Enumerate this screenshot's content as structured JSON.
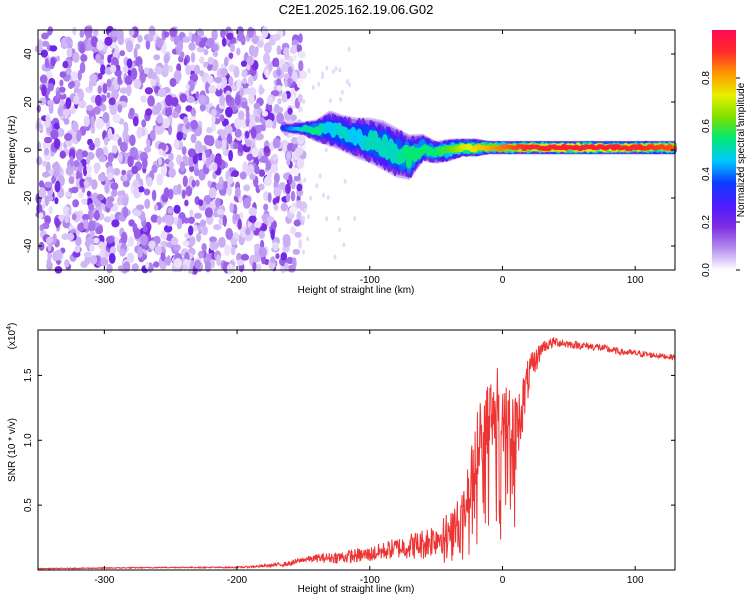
{
  "title": "C2E1.2025.162.19.06.G02",
  "chart_data": [
    {
      "type": "heatmap",
      "xlabel": "Height of straight line (km)",
      "ylabel": "Frequency (Hz)",
      "xlim": [
        -350,
        130
      ],
      "ylim": [
        -50,
        50
      ],
      "x_ticks": [
        -300,
        -200,
        -100,
        0,
        100
      ],
      "y_ticks": [
        -40,
        -20,
        0,
        20,
        40
      ],
      "colorbar": {
        "label": "Normalized spectral amplitude",
        "range": [
          0,
          1
        ],
        "ticks": [
          "0.0",
          "0.2",
          "0.4",
          "0.6",
          "0.8"
        ],
        "colormap": [
          "#ffffff",
          "#b48cf0",
          "#7d2be0",
          "#4b1cff",
          "#0a3cff",
          "#00c8ff",
          "#00e878",
          "#7be000",
          "#e8f000",
          "#ff9a00",
          "#ff2a2a",
          "#ff0a55"
        ]
      },
      "noise_region": {
        "x_from": -350,
        "x_to": -150,
        "freq_from": -50,
        "freq_to": 50,
        "level": 0.15
      },
      "ridge": {
        "x": [
          -165,
          -150,
          -140,
          -130,
          -120,
          -110,
          -100,
          -90,
          -80,
          -70,
          -60,
          -50,
          -40,
          -30,
          -20,
          -10,
          0,
          20,
          40,
          60,
          80,
          100,
          130
        ],
        "freq_hz": [
          9,
          9,
          8,
          9,
          7,
          5,
          4,
          2,
          -1,
          -3,
          1,
          -1,
          0,
          1,
          1,
          1,
          1,
          1,
          1,
          1,
          1,
          1,
          1
        ],
        "spread_hz": [
          2,
          3,
          5,
          8,
          8,
          9,
          10,
          11,
          11,
          10,
          6,
          5,
          5,
          4,
          4,
          3,
          3,
          3,
          3,
          3,
          3,
          3,
          3
        ],
        "peak": [
          0.35,
          0.5,
          0.55,
          0.45,
          0.5,
          0.45,
          0.5,
          0.5,
          0.5,
          0.55,
          0.55,
          0.55,
          0.6,
          0.7,
          0.75,
          0.8,
          0.85,
          0.92,
          0.95,
          0.95,
          0.95,
          0.92,
          0.88
        ]
      }
    },
    {
      "type": "line",
      "xlabel": "Height of straight line (km)",
      "ylabel": "SNR (10 * v/v)",
      "y_multiplier": "(x10",
      "y_multiplier_exp": "4",
      "xlim": [
        -350,
        130
      ],
      "ylim": [
        0,
        1.85
      ],
      "x_ticks": [
        -300,
        -200,
        -100,
        0,
        100
      ],
      "y_ticks": [
        "0.5",
        "1.0",
        "1.5"
      ],
      "series": [
        {
          "color": "#ee3333",
          "x": [
            -350,
            -300,
            -250,
            -200,
            -180,
            -160,
            -150,
            -140,
            -120,
            -100,
            -80,
            -60,
            -50,
            -40,
            -30,
            -25,
            -20,
            -15,
            -10,
            -5,
            0,
            5,
            10,
            20,
            30,
            40,
            50,
            60,
            70,
            80,
            90,
            100,
            110,
            120,
            130
          ],
          "y": [
            0.01,
            0.015,
            0.02,
            0.02,
            0.03,
            0.05,
            0.08,
            0.09,
            0.1,
            0.12,
            0.17,
            0.2,
            0.25,
            0.3,
            0.4,
            0.6,
            0.9,
            1.15,
            1.2,
            1.3,
            1.25,
            1.2,
            1.05,
            1.5,
            1.72,
            1.76,
            1.74,
            1.73,
            1.72,
            1.7,
            1.68,
            1.67,
            1.66,
            1.65,
            1.64
          ],
          "noise": [
            0.003,
            0.004,
            0.004,
            0.005,
            0.01,
            0.02,
            0.02,
            0.03,
            0.05,
            0.06,
            0.08,
            0.12,
            0.14,
            0.16,
            0.2,
            0.25,
            0.3,
            0.3,
            0.3,
            0.28,
            0.28,
            0.28,
            0.3,
            0.15,
            0.05,
            0.04,
            0.03,
            0.03,
            0.03,
            0.03,
            0.025,
            0.025,
            0.025,
            0.02,
            0.02
          ]
        }
      ]
    }
  ]
}
